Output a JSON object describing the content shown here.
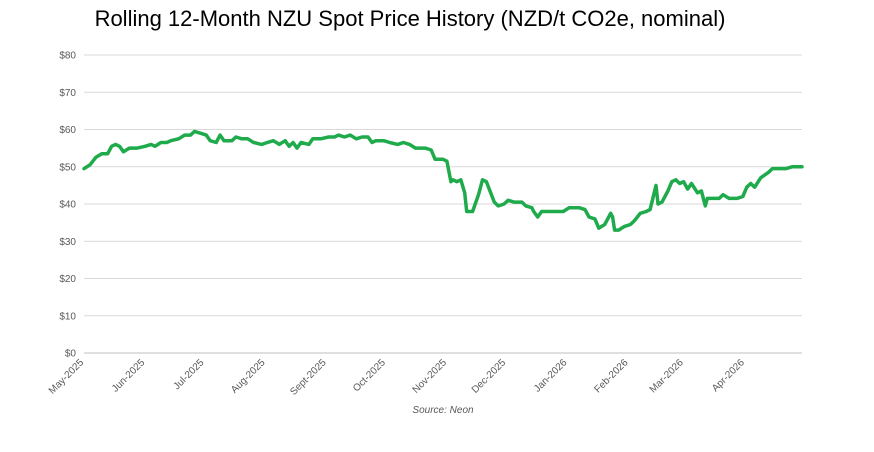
{
  "chart_data": {
    "type": "line",
    "title": "Rolling 12-Month NZU Spot Price History (NZD/t CO2e, nominal)",
    "source": "Source: Neon",
    "y_ticks": [
      "$0",
      "$10",
      "$20",
      "$30",
      "$40",
      "$50",
      "$60",
      "$70",
      "$80"
    ],
    "ylim": [
      0,
      80
    ],
    "x_ticks": [
      "May-2025",
      "Jun-2025",
      "Jul-2025",
      "Aug-2025",
      "Sept-2025",
      "Oct-2025",
      "Nov-2025",
      "Dec-2025",
      "Jan-2026",
      "Feb-2026",
      "Mar-2026",
      "Apr-2026"
    ],
    "xlim": [
      "2025-05-01",
      "2026-04-30"
    ],
    "grid": "horizontal",
    "line_color": "#1faa4b",
    "series": [
      {
        "points": [
          [
            "2025-05-01",
            49.5
          ],
          [
            "2025-05-04",
            50.5
          ],
          [
            "2025-05-07",
            52.5
          ],
          [
            "2025-05-10",
            53.5
          ],
          [
            "2025-05-13",
            53.5
          ],
          [
            "2025-05-15",
            55.5
          ],
          [
            "2025-05-17",
            56.0
          ],
          [
            "2025-05-19",
            55.5
          ],
          [
            "2025-05-21",
            54.0
          ],
          [
            "2025-05-24",
            55.0
          ],
          [
            "2025-05-28",
            55.0
          ],
          [
            "2025-06-01",
            55.5
          ],
          [
            "2025-06-04",
            56.0
          ],
          [
            "2025-06-06",
            55.5
          ],
          [
            "2025-06-09",
            56.5
          ],
          [
            "2025-06-12",
            56.5
          ],
          [
            "2025-06-14",
            57.0
          ],
          [
            "2025-06-18",
            57.5
          ],
          [
            "2025-06-21",
            58.5
          ],
          [
            "2025-06-24",
            58.5
          ],
          [
            "2025-06-26",
            59.5
          ],
          [
            "2025-06-29",
            59.0
          ],
          [
            "2025-07-02",
            58.5
          ],
          [
            "2025-07-04",
            57.0
          ],
          [
            "2025-07-07",
            56.5
          ],
          [
            "2025-07-09",
            58.5
          ],
          [
            "2025-07-11",
            57.0
          ],
          [
            "2025-07-15",
            57.0
          ],
          [
            "2025-07-17",
            58.0
          ],
          [
            "2025-07-20",
            57.5
          ],
          [
            "2025-07-23",
            57.5
          ],
          [
            "2025-07-26",
            56.5
          ],
          [
            "2025-07-30",
            56.0
          ],
          [
            "2025-08-02",
            56.5
          ],
          [
            "2025-08-05",
            57.0
          ],
          [
            "2025-08-08",
            56.0
          ],
          [
            "2025-08-11",
            57.0
          ],
          [
            "2025-08-13",
            55.5
          ],
          [
            "2025-08-15",
            56.5
          ],
          [
            "2025-08-17",
            55.0
          ],
          [
            "2025-08-19",
            56.5
          ],
          [
            "2025-08-23",
            56.0
          ],
          [
            "2025-08-25",
            57.5
          ],
          [
            "2025-08-29",
            57.5
          ],
          [
            "2025-09-02",
            58.0
          ],
          [
            "2025-09-05",
            58.0
          ],
          [
            "2025-09-07",
            58.5
          ],
          [
            "2025-09-10",
            58.0
          ],
          [
            "2025-09-13",
            58.5
          ],
          [
            "2025-09-16",
            57.5
          ],
          [
            "2025-09-19",
            58.0
          ],
          [
            "2025-09-22",
            58.0
          ],
          [
            "2025-09-24",
            56.5
          ],
          [
            "2025-09-26",
            57.0
          ],
          [
            "2025-09-30",
            57.0
          ],
          [
            "2025-10-03",
            56.5
          ],
          [
            "2025-10-07",
            56.0
          ],
          [
            "2025-10-10",
            56.5
          ],
          [
            "2025-10-13",
            56.0
          ],
          [
            "2025-10-16",
            55.0
          ],
          [
            "2025-10-21",
            55.0
          ],
          [
            "2025-10-24",
            54.5
          ],
          [
            "2025-10-26",
            52.0
          ],
          [
            "2025-10-30",
            52.0
          ],
          [
            "2025-11-01",
            51.5
          ],
          [
            "2025-11-03",
            46.0
          ],
          [
            "2025-11-04",
            46.5
          ],
          [
            "2025-11-06",
            46.0
          ],
          [
            "2025-11-08",
            46.5
          ],
          [
            "2025-11-10",
            43.0
          ],
          [
            "2025-11-11",
            38.0
          ],
          [
            "2025-11-14",
            38.0
          ],
          [
            "2025-11-17",
            42.5
          ],
          [
            "2025-11-19",
            46.5
          ],
          [
            "2025-11-21",
            46.0
          ],
          [
            "2025-11-25",
            40.5
          ],
          [
            "2025-11-27",
            39.5
          ],
          [
            "2025-11-30",
            40.0
          ],
          [
            "2025-12-02",
            41.0
          ],
          [
            "2025-12-05",
            40.5
          ],
          [
            "2025-12-09",
            40.5
          ],
          [
            "2025-12-11",
            39.5
          ],
          [
            "2025-12-14",
            39.0
          ],
          [
            "2025-12-15",
            38.0
          ],
          [
            "2025-12-17",
            36.5
          ],
          [
            "2025-12-19",
            38.0
          ],
          [
            "2025-12-24",
            38.0
          ],
          [
            "2025-12-30",
            38.0
          ],
          [
            "2026-01-02",
            39.0
          ],
          [
            "2026-01-07",
            39.0
          ],
          [
            "2026-01-10",
            38.5
          ],
          [
            "2026-01-12",
            36.5
          ],
          [
            "2026-01-15",
            36.0
          ],
          [
            "2026-01-17",
            33.5
          ],
          [
            "2026-01-20",
            34.5
          ],
          [
            "2026-01-23",
            37.5
          ],
          [
            "2026-01-24",
            36.5
          ],
          [
            "2026-01-25",
            33.0
          ],
          [
            "2026-01-27",
            33.0
          ],
          [
            "2026-01-30",
            34.0
          ],
          [
            "2026-02-02",
            34.5
          ],
          [
            "2026-02-04",
            35.5
          ],
          [
            "2026-02-07",
            37.5
          ],
          [
            "2026-02-10",
            38.0
          ],
          [
            "2026-02-12",
            38.5
          ],
          [
            "2026-02-15",
            45.0
          ],
          [
            "2026-02-16",
            40.0
          ],
          [
            "2026-02-18",
            40.5
          ],
          [
            "2026-02-21",
            43.5
          ],
          [
            "2026-02-23",
            46.0
          ],
          [
            "2026-02-25",
            46.5
          ],
          [
            "2026-02-27",
            45.5
          ],
          [
            "2026-03-01",
            46.0
          ],
          [
            "2026-03-03",
            44.0
          ],
          [
            "2026-03-05",
            45.5
          ],
          [
            "2026-03-08",
            43.0
          ],
          [
            "2026-03-10",
            43.5
          ],
          [
            "2026-03-12",
            39.5
          ],
          [
            "2026-03-13",
            41.5
          ],
          [
            "2026-03-16",
            41.5
          ],
          [
            "2026-03-19",
            41.5
          ],
          [
            "2026-03-21",
            42.5
          ],
          [
            "2026-03-24",
            41.5
          ],
          [
            "2026-03-28",
            41.5
          ],
          [
            "2026-03-31",
            42.0
          ],
          [
            "2026-04-02",
            44.5
          ],
          [
            "2026-04-04",
            45.5
          ],
          [
            "2026-04-06",
            44.5
          ],
          [
            "2026-04-09",
            47.0
          ],
          [
            "2026-04-13",
            48.5
          ],
          [
            "2026-04-15",
            49.5
          ],
          [
            "2026-04-19",
            49.5
          ],
          [
            "2026-04-22",
            49.5
          ],
          [
            "2026-04-25",
            50.0
          ],
          [
            "2026-04-30",
            50.0
          ]
        ]
      }
    ]
  }
}
